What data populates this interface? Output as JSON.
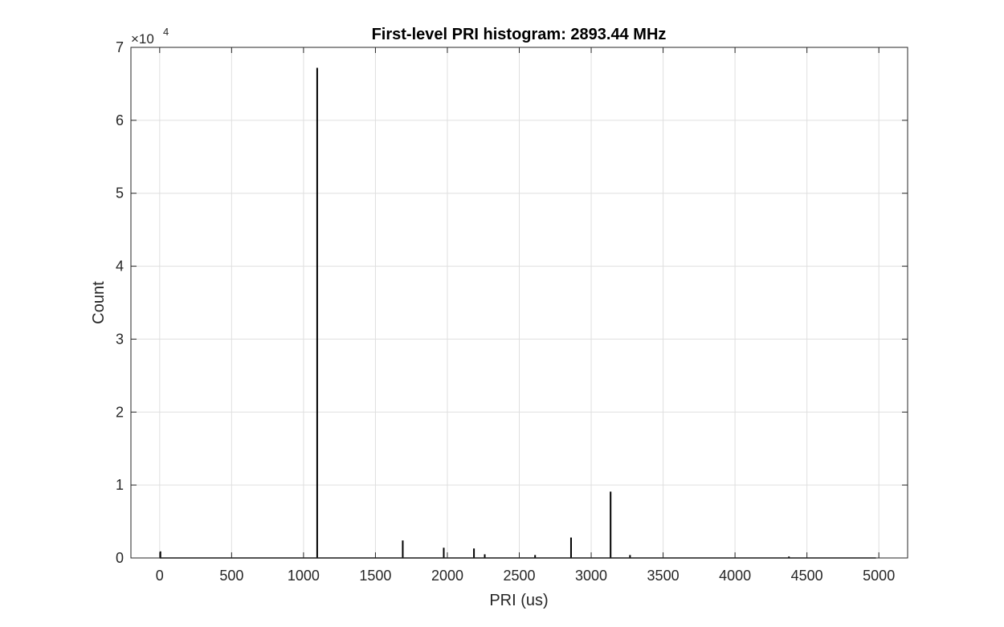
{
  "chart_data": {
    "type": "bar",
    "title": "First-level PRI histogram: 2893.44 MHz",
    "xlabel": "PRI (us)",
    "ylabel": "Count",
    "y_exponent_base": "×10",
    "y_exponent_power": "4",
    "xlim": [
      -200,
      5200
    ],
    "ylim": [
      0,
      70000
    ],
    "xticks": [
      0,
      500,
      1000,
      1500,
      2000,
      2500,
      3000,
      3500,
      4000,
      4500,
      5000
    ],
    "xtick_labels": [
      "0",
      "500",
      "1000",
      "1500",
      "2000",
      "2500",
      "3000",
      "3500",
      "4000",
      "4500",
      "5000"
    ],
    "yticks": [
      0,
      10000,
      20000,
      30000,
      40000,
      50000,
      60000,
      70000
    ],
    "ytick_labels": [
      "0",
      "1",
      "2",
      "3",
      "4",
      "5",
      "6",
      "7"
    ],
    "grid": true,
    "baseline_range": [
      0,
      4980
    ],
    "x": [
      5,
      1095,
      1690,
      1975,
      2185,
      2260,
      2610,
      2860,
      3135,
      3270,
      4375
    ],
    "values": [
      900,
      67200,
      2400,
      1400,
      1300,
      500,
      400,
      2800,
      9100,
      400,
      200
    ],
    "colors": {
      "bar": "#000000",
      "grid": "#dfdfdf",
      "axis": "#262626"
    }
  }
}
